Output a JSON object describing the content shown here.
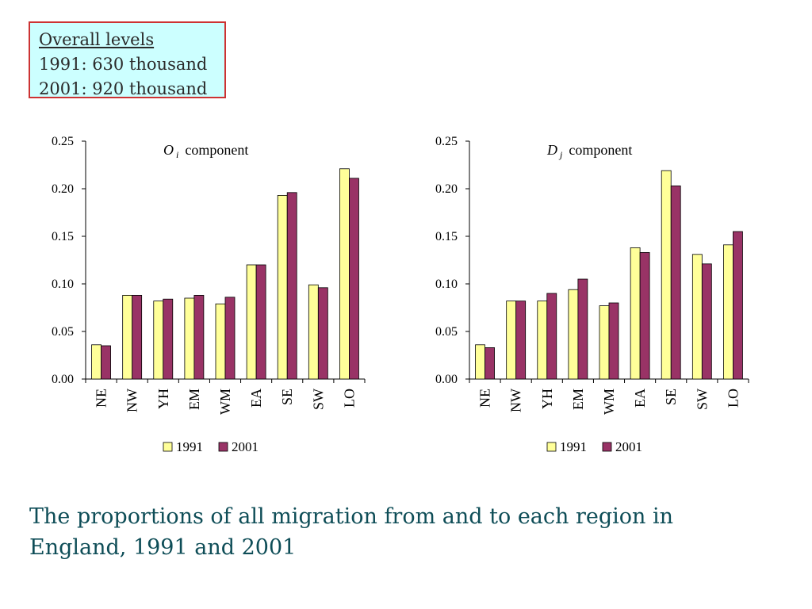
{
  "overall_levels": {
    "heading": "Overall levels",
    "line_1991": "1991:  630 thousand",
    "line_2001": "2001: 920 thousand"
  },
  "caption": "The proportions of all migration from and to each region in England, 1991 and 2001",
  "colors": {
    "bar_1991": "#ffff99",
    "bar_2001": "#993366",
    "box_fill": "#ccffff",
    "box_border": "#cc3333",
    "caption": "#0e4d57"
  },
  "chart_data": [
    {
      "type": "bar",
      "title": {
        "symbol": "O",
        "subscript": "i",
        "word": "component"
      },
      "categories": [
        "NE",
        "NW",
        "YH",
        "EM",
        "WM",
        "EA",
        "SE",
        "SW",
        "LO"
      ],
      "series": [
        {
          "name": "1991",
          "values": [
            0.036,
            0.088,
            0.082,
            0.085,
            0.079,
            0.12,
            0.193,
            0.099,
            0.221
          ]
        },
        {
          "name": "2001",
          "values": [
            0.035,
            0.088,
            0.084,
            0.088,
            0.086,
            0.12,
            0.196,
            0.096,
            0.211
          ]
        }
      ],
      "ylim": [
        0,
        0.25
      ],
      "yticks": [
        "0.00",
        "0.05",
        "0.10",
        "0.15",
        "0.20",
        "0.25"
      ],
      "legend": "bottom",
      "grid": false
    },
    {
      "type": "bar",
      "title": {
        "symbol": "D",
        "subscript": "j",
        "word": "component"
      },
      "categories": [
        "NE",
        "NW",
        "YH",
        "EM",
        "WM",
        "EA",
        "SE",
        "SW",
        "LO"
      ],
      "series": [
        {
          "name": "1991",
          "values": [
            0.036,
            0.082,
            0.082,
            0.094,
            0.077,
            0.138,
            0.219,
            0.131,
            0.141
          ]
        },
        {
          "name": "2001",
          "values": [
            0.033,
            0.082,
            0.09,
            0.105,
            0.08,
            0.133,
            0.203,
            0.121,
            0.155
          ]
        }
      ],
      "ylim": [
        0,
        0.25
      ],
      "yticks": [
        "0.00",
        "0.05",
        "0.10",
        "0.15",
        "0.20",
        "0.25"
      ],
      "legend": "bottom",
      "grid": false
    }
  ]
}
